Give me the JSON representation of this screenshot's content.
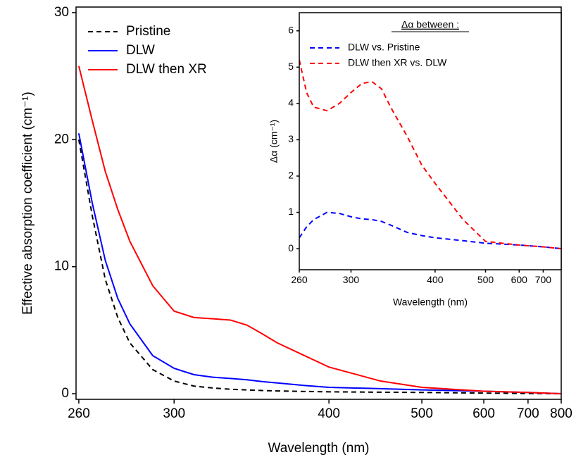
{
  "chart_data": [
    {
      "type": "line",
      "xscale": "reciprocal",
      "x_label": "Wavelength (nm)",
      "y_label": "Effective absorption coefficient (cm⁻¹)",
      "x": [
        260,
        265,
        270,
        275,
        280,
        290,
        300,
        310,
        320,
        330,
        340,
        350,
        360,
        380,
        400,
        450,
        500,
        600,
        700,
        800
      ],
      "series": [
        {
          "name": "Pristine",
          "color": "#000000",
          "line_style": "dashed",
          "values": [
            20,
            14,
            9,
            6,
            4,
            1.9,
            1.0,
            0.6,
            0.45,
            0.35,
            0.3,
            0.25,
            0.22,
            0.18,
            0.15,
            0.12,
            0.1,
            0.05,
            0.02,
            0
          ]
        },
        {
          "name": "DLW",
          "color": "#0000ff",
          "line_style": "solid",
          "values": [
            20.5,
            15,
            10.5,
            7.5,
            5.5,
            3.0,
            2.0,
            1.5,
            1.3,
            1.2,
            1.1,
            0.95,
            0.85,
            0.65,
            0.5,
            0.4,
            0.3,
            0.2,
            0.1,
            0
          ]
        },
        {
          "name": "DLW then XR",
          "color": "#ff0000",
          "line_style": "solid",
          "values": [
            25.8,
            21.5,
            17.5,
            14.5,
            12,
            8.5,
            6.5,
            6.0,
            5.9,
            5.8,
            5.4,
            4.7,
            4.0,
            3.0,
            2.1,
            1.0,
            0.5,
            0.2,
            0.1,
            0
          ]
        }
      ],
      "xlim": [
        259,
        800
      ],
      "ylim": [
        -0.44,
        30.44
      ],
      "xticks": [
        260,
        300,
        400,
        500,
        600,
        700,
        800
      ],
      "yticks": [
        0,
        10,
        20,
        30
      ],
      "legend": "upper left"
    },
    {
      "type": "line",
      "xscale": "reciprocal",
      "x_label": "Wavelength (nm)",
      "y_label": "Δα (cm⁻¹)",
      "legend_title": "Δα between :",
      "x": [
        260,
        265,
        270,
        280,
        290,
        300,
        310,
        320,
        330,
        340,
        360,
        380,
        400,
        450,
        500,
        600,
        700,
        800
      ],
      "series": [
        {
          "name": "DLW vs. Pristine",
          "color": "#0000ff",
          "line_style": "dashed",
          "values": [
            0.3,
            0.6,
            0.8,
            1.0,
            0.97,
            0.88,
            0.82,
            0.8,
            0.75,
            0.65,
            0.45,
            0.36,
            0.3,
            0.22,
            0.15,
            0.1,
            0.05,
            0
          ]
        },
        {
          "name": "DLW then XR vs. DLW",
          "color": "#ff0000",
          "line_style": "dashed",
          "values": [
            5.2,
            4.3,
            3.9,
            3.8,
            4.0,
            4.3,
            4.55,
            4.6,
            4.4,
            3.9,
            3.1,
            2.3,
            1.8,
            0.8,
            0.2,
            0.1,
            0.05,
            0
          ]
        }
      ],
      "xlim": [
        260,
        800
      ],
      "ylim": [
        -0.58,
        6.5
      ],
      "xticks": [
        260,
        300,
        400,
        500,
        600,
        700
      ],
      "yticks": [
        0,
        1,
        2,
        3,
        4,
        5,
        6
      ],
      "legend": "upper left"
    }
  ]
}
